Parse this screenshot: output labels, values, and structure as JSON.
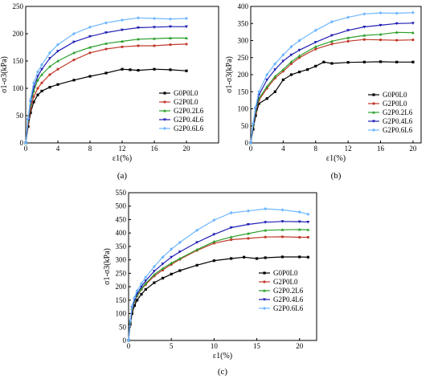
{
  "figure": {
    "series_colors": [
      "#000000",
      "#c0392b",
      "#2ca02c",
      "#1f1fb4",
      "#6fb7ff"
    ]
  },
  "chart_data": [
    {
      "panel_label": "(a)",
      "type": "line",
      "xlabel": "ε1(%)",
      "ylabel": "σ1-σ3(kPa)",
      "xlim": [
        0,
        24
      ],
      "ylim": [
        0,
        250
      ],
      "xticks": [
        0,
        4,
        8,
        12,
        16,
        20
      ],
      "yticks": [
        0,
        50,
        100,
        150,
        200,
        250
      ],
      "legend_position": "lower-right",
      "series": [
        {
          "name": "G0P0L0",
          "x": [
            0,
            0.3,
            0.6,
            1,
            1.5,
            2,
            3,
            4,
            6,
            8,
            10,
            12,
            13,
            14,
            16,
            18,
            20
          ],
          "y": [
            0,
            30,
            55,
            75,
            88,
            95,
            102,
            107,
            115,
            122,
            128,
            135,
            134,
            133,
            135,
            134,
            132
          ]
        },
        {
          "name": "G2P0L0",
          "x": [
            0,
            0.3,
            0.6,
            1,
            1.5,
            2,
            3,
            4,
            6,
            8,
            10,
            12,
            14,
            16,
            18,
            20
          ],
          "y": [
            0,
            35,
            62,
            85,
            100,
            110,
            125,
            135,
            152,
            165,
            172,
            176,
            178,
            178,
            180,
            181
          ]
        },
        {
          "name": "G2P0.2L6",
          "x": [
            0,
            0.3,
            0.6,
            1,
            1.5,
            2,
            3,
            4,
            6,
            8,
            10,
            12,
            14,
            16,
            18,
            20
          ],
          "y": [
            0,
            40,
            70,
            95,
            115,
            125,
            140,
            150,
            165,
            175,
            182,
            186,
            190,
            191,
            192,
            192
          ]
        },
        {
          "name": "G2P0.4L6",
          "x": [
            0,
            0.3,
            0.6,
            1,
            1.5,
            2,
            3,
            4,
            6,
            8,
            10,
            12,
            14,
            16,
            18,
            20
          ],
          "y": [
            0,
            42,
            75,
            102,
            122,
            135,
            155,
            168,
            185,
            195,
            202,
            207,
            211,
            212,
            213,
            213
          ]
        },
        {
          "name": "G2P0.6L6",
          "x": [
            0,
            0.3,
            0.6,
            1,
            1.5,
            2,
            3,
            4,
            6,
            8,
            10,
            12,
            14,
            16,
            18,
            20
          ],
          "y": [
            0,
            45,
            80,
            110,
            130,
            143,
            165,
            180,
            200,
            212,
            220,
            225,
            229,
            228,
            227,
            228
          ]
        }
      ]
    },
    {
      "panel_label": "(b)",
      "type": "line",
      "xlabel": "ε1(%)",
      "ylabel": "σ1-σ3(kPa)",
      "xlim": [
        0,
        21
      ],
      "ylim": [
        0,
        400
      ],
      "xticks": [
        0,
        4,
        8,
        12,
        16,
        20
      ],
      "yticks": [
        0,
        50,
        100,
        150,
        200,
        250,
        300,
        350,
        400
      ],
      "legend_position": "lower-right",
      "series": [
        {
          "name": "G0P0L0",
          "x": [
            0,
            0.3,
            0.6,
            1,
            2,
            3,
            4,
            5,
            6,
            7,
            8,
            9,
            10,
            12,
            14,
            16,
            18,
            20
          ],
          "y": [
            0,
            40,
            80,
            115,
            130,
            150,
            185,
            200,
            208,
            215,
            225,
            237,
            233,
            236,
            237,
            238,
            237,
            237
          ]
        },
        {
          "name": "G2P0L0",
          "x": [
            0,
            0.3,
            0.6,
            1,
            2,
            3,
            4,
            5,
            6,
            8,
            10,
            12,
            14,
            16,
            18,
            20
          ],
          "y": [
            0,
            50,
            90,
            125,
            160,
            190,
            210,
            232,
            250,
            275,
            290,
            298,
            303,
            302,
            301,
            302
          ]
        },
        {
          "name": "G2P0.2L6",
          "x": [
            0,
            0.3,
            0.6,
            1,
            2,
            3,
            4,
            5,
            6,
            8,
            10,
            12,
            14,
            16,
            18,
            20
          ],
          "y": [
            0,
            52,
            95,
            130,
            165,
            195,
            215,
            238,
            255,
            282,
            298,
            308,
            315,
            318,
            324,
            323
          ]
        },
        {
          "name": "G2P0.4L6",
          "x": [
            0,
            0.3,
            0.6,
            1,
            2,
            3,
            4,
            5,
            6,
            8,
            10,
            12,
            14,
            16,
            18,
            20
          ],
          "y": [
            0,
            55,
            100,
            140,
            185,
            215,
            240,
            258,
            272,
            295,
            315,
            330,
            340,
            345,
            350,
            351
          ]
        },
        {
          "name": "G2P0.6L6",
          "x": [
            0,
            0.3,
            0.6,
            1,
            2,
            3,
            4,
            5,
            6,
            8,
            10,
            12,
            14,
            16,
            18,
            20
          ],
          "y": [
            0,
            58,
            105,
            150,
            200,
            232,
            258,
            282,
            300,
            330,
            355,
            368,
            378,
            381,
            380,
            382
          ]
        }
      ]
    },
    {
      "panel_label": "(c)",
      "type": "line",
      "xlabel": "ε1(%)",
      "ylabel": "σ1-σ3(kPa)",
      "xlim": [
        0,
        22
      ],
      "ylim": [
        0,
        550
      ],
      "xticks": [
        0,
        5,
        10,
        15,
        20
      ],
      "yticks": [
        0,
        50,
        100,
        150,
        200,
        250,
        300,
        350,
        400,
        450,
        500,
        550
      ],
      "legend_position": "lower-right",
      "series": [
        {
          "name": "G0P0L0",
          "x": [
            0,
            0.2,
            0.4,
            0.7,
            1,
            1.5,
            2,
            3,
            4,
            5,
            6,
            8,
            10,
            12,
            13.5,
            15,
            16,
            18,
            20,
            21
          ],
          "y": [
            0,
            60,
            100,
            130,
            150,
            172,
            190,
            215,
            232,
            247,
            260,
            280,
            297,
            305,
            310,
            305,
            308,
            311,
            311,
            310
          ]
        },
        {
          "name": "G2P0L0",
          "x": [
            0,
            0.2,
            0.4,
            0.7,
            1,
            1.5,
            2,
            3,
            4,
            5,
            6,
            8,
            10,
            12,
            14,
            16,
            18,
            20,
            21
          ],
          "y": [
            0,
            70,
            115,
            145,
            165,
            190,
            208,
            240,
            262,
            283,
            302,
            335,
            362,
            375,
            380,
            385,
            386,
            384,
            384
          ]
        },
        {
          "name": "G2P0.2L6",
          "x": [
            0,
            0.2,
            0.4,
            0.7,
            1,
            1.5,
            2,
            3,
            4,
            5,
            6,
            8,
            10,
            12,
            14,
            16,
            18,
            20,
            21
          ],
          "y": [
            0,
            70,
            118,
            148,
            168,
            192,
            212,
            245,
            268,
            288,
            305,
            338,
            368,
            385,
            398,
            410,
            412,
            413,
            412
          ]
        },
        {
          "name": "G2P0.4L6",
          "x": [
            0,
            0.2,
            0.4,
            0.7,
            1,
            1.5,
            2,
            3,
            4,
            5,
            6,
            8,
            10,
            12,
            14,
            16,
            18,
            20,
            21
          ],
          "y": [
            0,
            72,
            122,
            152,
            175,
            200,
            222,
            258,
            285,
            310,
            330,
            365,
            395,
            420,
            432,
            440,
            443,
            442,
            441
          ]
        },
        {
          "name": "G2P0.6L6",
          "x": [
            0,
            0.2,
            0.4,
            0.7,
            1,
            1.5,
            2,
            3,
            4,
            5,
            6,
            8,
            10,
            12,
            14,
            16,
            18,
            20,
            21
          ],
          "y": [
            0,
            75,
            128,
            160,
            185,
            212,
            235,
            275,
            310,
            340,
            365,
            410,
            448,
            475,
            482,
            490,
            486,
            478,
            470
          ]
        }
      ]
    }
  ]
}
